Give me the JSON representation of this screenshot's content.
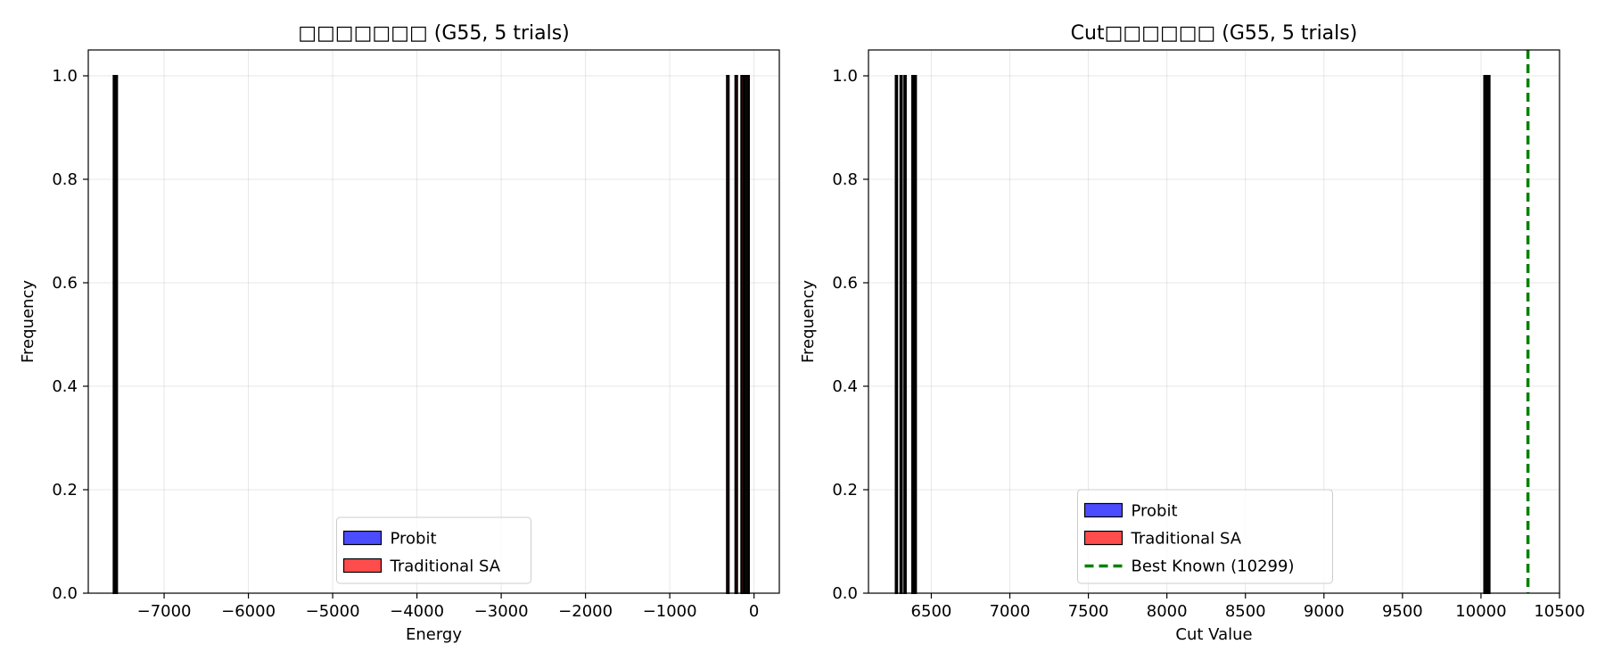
{
  "colors": {
    "probit": "#0000ff",
    "traditional_sa": "#ff0000",
    "best_known_line": "#008000",
    "edge": "#000000",
    "grid": "#b0b0b0"
  },
  "chart_data": [
    {
      "type": "bar",
      "title": "□□□□□□□ (G55, 5 trials)",
      "xlabel": "Energy",
      "ylabel": "Frequency",
      "xlim": [
        -7900,
        300
      ],
      "ylim": [
        0,
        1.05
      ],
      "xticks": [
        -7000,
        -6000,
        -5000,
        -4000,
        -3000,
        -2000,
        -1000,
        0
      ],
      "xtick_labels": [
        "−7000",
        "−6000",
        "−5000",
        "−4000",
        "−3000",
        "−2000",
        "−1000",
        "0"
      ],
      "yticks": [
        0.0,
        0.2,
        0.4,
        0.6,
        0.8,
        1.0
      ],
      "ytick_labels": [
        "0.0",
        "0.2",
        "0.4",
        "0.6",
        "0.8",
        "1.0"
      ],
      "grid": true,
      "legend_position": "lower-center",
      "series": [
        {
          "name": "Probit",
          "color_key": "probit",
          "bins": [
            {
              "x0": -7600,
              "x1": -7592,
              "count": 1
            },
            {
              "x0": -7592,
              "x1": -7584,
              "count": 1
            },
            {
              "x0": -7584,
              "x1": -7576,
              "count": 1
            },
            {
              "x0": -7576,
              "x1": -7568,
              "count": 1
            },
            {
              "x0": -7568,
              "x1": -7560,
              "count": 1
            }
          ]
        },
        {
          "name": "Traditional SA",
          "color_key": "traditional_sa",
          "bins": [
            {
              "x0": -322,
              "x1": -300,
              "count": 1
            },
            {
              "x0": -222,
              "x1": -200,
              "count": 1
            },
            {
              "x0": -152,
              "x1": -130,
              "count": 1
            },
            {
              "x0": -112,
              "x1": -90,
              "count": 1
            },
            {
              "x0": -82,
              "x1": -60,
              "count": 1
            }
          ]
        }
      ],
      "legend": [
        {
          "label": "Probit",
          "kind": "patch",
          "color_key": "probit"
        },
        {
          "label": "Traditional SA",
          "kind": "patch",
          "color_key": "traditional_sa"
        }
      ]
    },
    {
      "type": "bar",
      "title": "Cut□□□□□□ (G55, 5 trials)",
      "xlabel": "Cut Value",
      "ylabel": "Frequency",
      "xlim": [
        6100,
        10500
      ],
      "ylim": [
        0,
        1.05
      ],
      "xticks": [
        6500,
        7000,
        7500,
        8000,
        8500,
        9000,
        9500,
        10000,
        10500
      ],
      "xtick_labels": [
        "6500",
        "7000",
        "7500",
        "8000",
        "8500",
        "9000",
        "9500",
        "10000",
        "10500"
      ],
      "yticks": [
        0.0,
        0.2,
        0.4,
        0.6,
        0.8,
        1.0
      ],
      "ytick_labels": [
        "0.0",
        "0.2",
        "0.4",
        "0.6",
        "0.8",
        "1.0"
      ],
      "grid": true,
      "legend_position": "lower-center",
      "series": [
        {
          "name": "Probit",
          "color_key": "probit",
          "bins": [
            {
              "x0": 10020,
              "x1": 10027,
              "count": 1
            },
            {
              "x0": 10027,
              "x1": 10034,
              "count": 1
            },
            {
              "x0": 10034,
              "x1": 10041,
              "count": 1
            },
            {
              "x0": 10041,
              "x1": 10048,
              "count": 1
            },
            {
              "x0": 10048,
              "x1": 10055,
              "count": 1
            }
          ]
        },
        {
          "name": "Traditional SA",
          "color_key": "traditional_sa",
          "bins": [
            {
              "x0": 6273,
              "x1": 6283,
              "count": 1
            },
            {
              "x0": 6303,
              "x1": 6313,
              "count": 1
            },
            {
              "x0": 6328,
              "x1": 6338,
              "count": 1
            },
            {
              "x0": 6378,
              "x1": 6388,
              "count": 1
            },
            {
              "x0": 6393,
              "x1": 6403,
              "count": 1
            }
          ]
        }
      ],
      "reference_lines": [
        {
          "name": "Best Known (10299)",
          "x": 10299,
          "style": "dashed",
          "color_key": "best_known_line"
        }
      ],
      "legend": [
        {
          "label": "Probit",
          "kind": "patch",
          "color_key": "probit"
        },
        {
          "label": "Traditional SA",
          "kind": "patch",
          "color_key": "traditional_sa"
        },
        {
          "label": "Best Known (10299)",
          "kind": "line",
          "color_key": "best_known_line"
        }
      ]
    }
  ]
}
